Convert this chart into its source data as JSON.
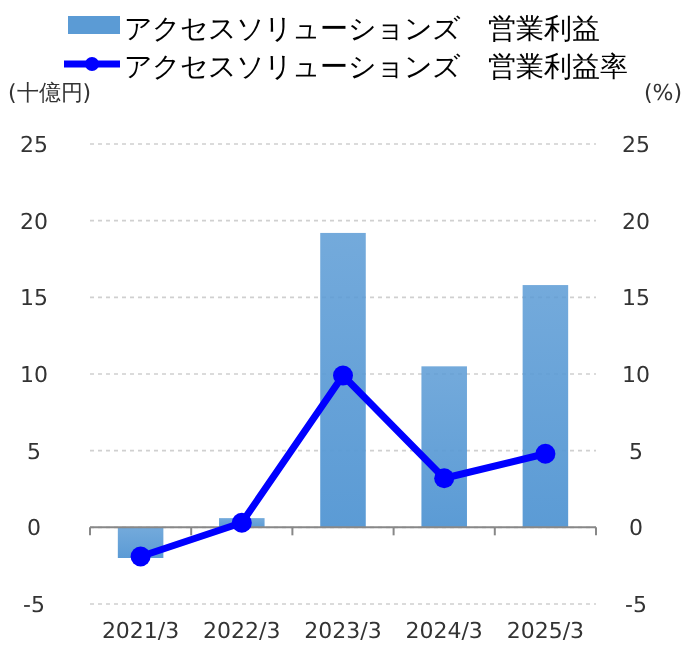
{
  "chart_data": {
    "type": "bar",
    "ylabel": "(十億円)",
    "y2label": "(%)",
    "categories": [
      "2021/3",
      "2022/3",
      "2023/3",
      "2024/3",
      "2025/3"
    ],
    "series": [
      {
        "name": "アクセスソリューションズ　営業利益",
        "type": "bar",
        "color": "#5b9bd5",
        "values": [
          -2.0,
          0.6,
          19.2,
          10.5,
          15.8
        ]
      },
      {
        "name": "アクセスソリューションズ　営業利益率",
        "type": "line",
        "axis": "y2",
        "color": "#0000ff",
        "marker": "circle",
        "values": [
          -1.9,
          0.3,
          9.9,
          3.2,
          4.8
        ]
      }
    ],
    "ylim": [
      -5,
      25
    ],
    "yticks": [
      -5,
      0,
      5,
      10,
      15,
      20,
      25
    ],
    "y2lim": [
      -5,
      25
    ],
    "y2ticks": [
      -5,
      0,
      5,
      10,
      15,
      20,
      25
    ],
    "grid": "y",
    "legend": "top"
  }
}
